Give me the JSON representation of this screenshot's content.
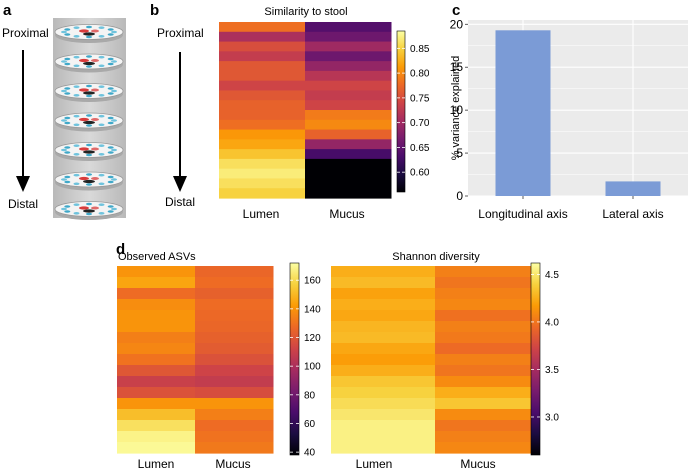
{
  "panels": {
    "a": {
      "label": "a",
      "proximal": "Proximal",
      "distal": "Distal",
      "disc_count": 7
    },
    "b": {
      "label": "b",
      "proximal": "Proximal",
      "distal": "Distal"
    },
    "c": {
      "label": "c"
    },
    "d": {
      "label": "d"
    }
  },
  "colors": {
    "inferno_stops": [
      "#000004",
      "#1b0c41",
      "#4a0c6b",
      "#781c6d",
      "#a52c60",
      "#cf4446",
      "#ed6925",
      "#fb9b06",
      "#f7d13d",
      "#fcffa4"
    ],
    "bar": "#7b9bd6",
    "plot_bg": "#ebebeb",
    "grid": "#ffffff",
    "tube": "#c8c8c8",
    "arrow": "#000000"
  },
  "chart_data": [
    {
      "id": "b",
      "type": "heatmap",
      "title": "Similarity to stool",
      "columns": [
        "Lumen",
        "Mucus"
      ],
      "rows_direction": "top = proximal, bottom = distal",
      "value_range": [
        0.56,
        0.885
      ],
      "colorbar_ticks": [
        0.85,
        0.8,
        0.75,
        0.7,
        0.65,
        0.6
      ],
      "colorbar_tick_labels": [
        "0.85",
        "0.80",
        "0.75",
        "0.70",
        "0.65",
        "0.60"
      ],
      "values": [
        [
          0.78,
          0.71,
          0.75,
          0.73,
          0.76,
          0.76,
          0.74,
          0.76,
          0.77,
          0.77,
          0.78,
          0.81,
          0.82,
          0.84,
          0.86,
          0.87,
          0.86,
          0.85
        ],
        [
          0.64,
          0.66,
          0.7,
          0.66,
          0.69,
          0.72,
          0.74,
          0.73,
          0.74,
          0.79,
          0.8,
          0.77,
          0.69,
          0.63,
          0.56,
          0.56,
          0.56,
          0.56
        ]
      ]
    },
    {
      "id": "c",
      "type": "bar",
      "categories": [
        "Longitudinal axis",
        "Lateral axis"
      ],
      "values": [
        19.3,
        1.7
      ],
      "ylabel": "% variance explained",
      "xlabel": "",
      "ylim": [
        0,
        20.5
      ],
      "yticks": [
        0,
        5,
        10,
        15,
        20
      ],
      "grid": true
    },
    {
      "id": "d1",
      "type": "heatmap",
      "title": "Observed ASVs",
      "columns": [
        "Lumen",
        "Mucus"
      ],
      "value_range": [
        38,
        172
      ],
      "colorbar_ticks": [
        160,
        140,
        120,
        100,
        80,
        60,
        40
      ],
      "colorbar_tick_labels": [
        "160",
        "140",
        "120",
        "100",
        "80",
        "60",
        "40"
      ],
      "values": [
        [
          140,
          145,
          128,
          138,
          140,
          140,
          134,
          136,
          130,
          120,
          110,
          118,
          140,
          152,
          162,
          168,
          170
        ],
        [
          126,
          128,
          124,
          128,
          127,
          126,
          124,
          122,
          118,
          112,
          108,
          116,
          140,
          134,
          128,
          130,
          132
        ]
      ]
    },
    {
      "id": "d2",
      "type": "heatmap",
      "title": "Shannon diversity",
      "columns": [
        "Lumen",
        "Mucus"
      ],
      "value_range": [
        2.6,
        4.62
      ],
      "colorbar_ticks": [
        4.5,
        4.0,
        3.5,
        3.0
      ],
      "colorbar_tick_labels": [
        "4.5",
        "4.0",
        "3.5",
        "3.0"
      ],
      "values": [
        [
          4.25,
          4.3,
          4.2,
          4.25,
          4.22,
          4.28,
          4.3,
          4.22,
          4.18,
          4.25,
          4.35,
          4.4,
          4.45,
          4.5,
          4.55,
          4.55,
          4.55
        ],
        [
          4.05,
          4.0,
          4.05,
          4.08,
          3.98,
          4.05,
          4.02,
          3.95,
          4.05,
          4.0,
          4.1,
          4.25,
          4.35,
          4.1,
          4.0,
          4.05,
          4.08
        ]
      ]
    }
  ]
}
